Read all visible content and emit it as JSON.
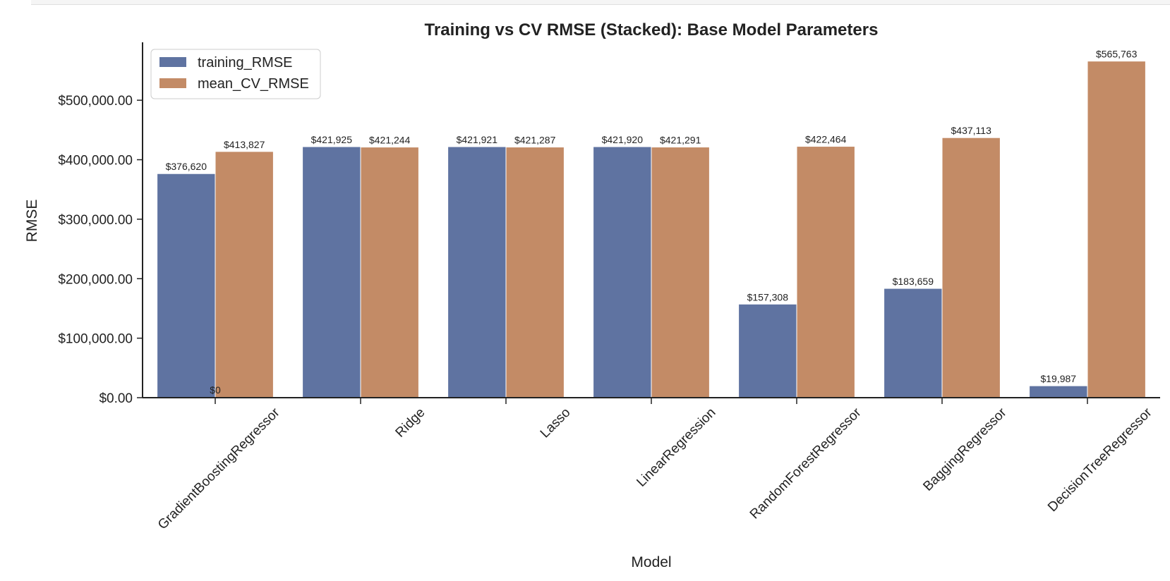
{
  "chart_data": {
    "type": "bar",
    "title": "Training vs CV RMSE (Stacked): Base Model Parameters",
    "xlabel": "Model",
    "ylabel": "RMSE",
    "ylim": [
      0,
      595000
    ],
    "yticks": [
      0,
      100000,
      200000,
      300000,
      400000,
      500000
    ],
    "ytick_labels": [
      "$0.00",
      "$100,000.00",
      "$200,000.00",
      "$300,000.00",
      "$400,000.00",
      "$500,000.00"
    ],
    "categories": [
      "GradientBoostingRegressor",
      "Ridge",
      "Lasso",
      "LinearRegression",
      "RandomForestRegressor",
      "BaggingRegressor",
      "DecisionTreeRegressor"
    ],
    "series": [
      {
        "name": "training_RMSE",
        "color": "#5f73a1",
        "values": [
          376620,
          421925,
          421921,
          421920,
          157308,
          183659,
          19987
        ],
        "labels": [
          "$376,620",
          "$421,925",
          "$421,921",
          "$421,920",
          "$157,308",
          "$183,659",
          "$19,987"
        ]
      },
      {
        "name": "mean_CV_RMSE",
        "color": "#c38b66",
        "values": [
          413827,
          421244,
          421287,
          421291,
          422464,
          437113,
          565763
        ],
        "labels": [
          "$413,827",
          "$421,244",
          "$421,287",
          "$421,291",
          "$422,464",
          "$437,113",
          "$565,763"
        ]
      }
    ],
    "extra_annotation": "$0",
    "legend_position": "top-left",
    "grid": false
  }
}
